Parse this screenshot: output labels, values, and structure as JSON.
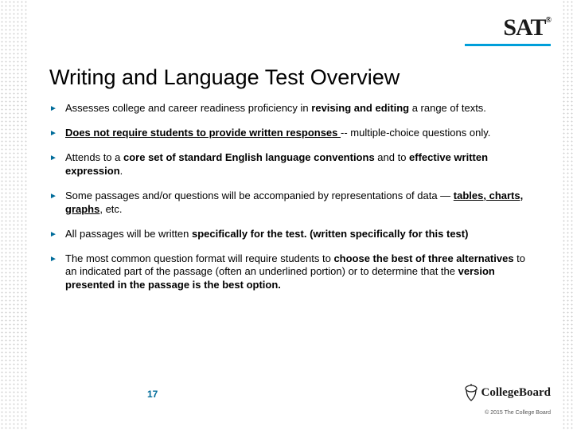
{
  "logo": {
    "sat": "SAT",
    "collegeboard": "CollegeBoard"
  },
  "title": "Writing and Language Test Overview",
  "accent_color": "#009fda",
  "bullet_color": "#006c9a",
  "bullets": [
    {
      "html": "Assesses college and career readiness proficiency in <b>revising and editing</b> a range of texts."
    },
    {
      "html": "<b><u>Does not require students to provide written responses </u></b> -- multiple-choice questions only."
    },
    {
      "html": "Attends to a <b>core set of standard English language conventions</b> and to <b>effective written expression</b>."
    },
    {
      "html": "Some passages and/or questions will be accompanied by representations of data — <b><u>tables, charts, graphs</u></b>, etc."
    },
    {
      "html": "All passages will be written <b>specifically for the test. (written specifically for this test)</b>"
    },
    {
      "html": "The most common question format will require students to <b>choose the best of three alternatives</b> to an indicated part of the passage (often an underlined portion) or to determine that the <b>version presented in the passage is the best option.</b>"
    }
  ],
  "page_number": "17",
  "copyright": "© 2015 The College Board"
}
